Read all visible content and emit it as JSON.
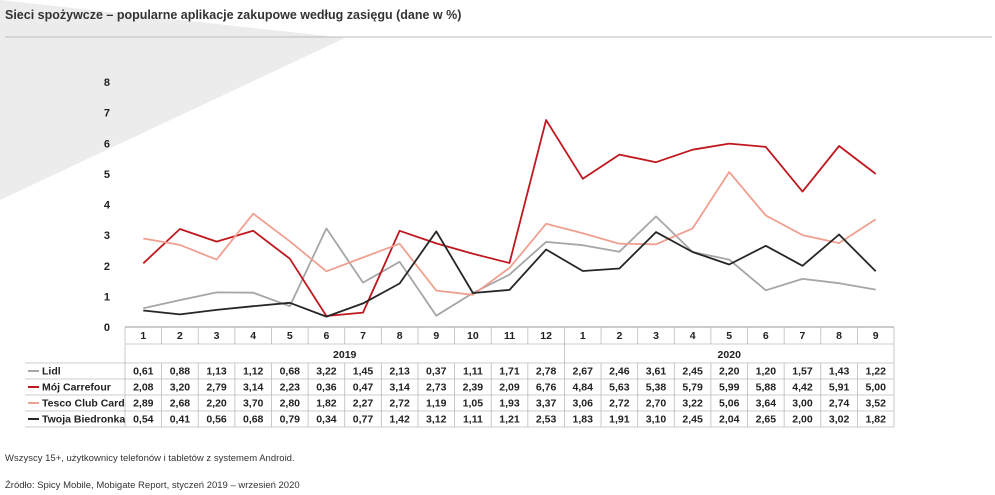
{
  "title": "Sieci spożywcze – popularne aplikacje zakupowe według zasięgu (dane w %)",
  "note": "Wszyscy 15+, użytkownicy telefonów i tabletów z systemem Android.",
  "source": "Źródło: Spicy Mobile, Mobigate Report, styczeń 2019 – wrzesień 2020",
  "colors": {
    "lidl": "#a6a6a6",
    "carrefour": "#c0181f",
    "tesco": "#f0a090",
    "biedronka": "#262626",
    "decor": "#ececec"
  },
  "chart_data": {
    "type": "line",
    "title": "Sieci spożywcze – popularne aplikacje zakupowe według zasięgu (dane w %)",
    "x": [
      "1",
      "2",
      "3",
      "4",
      "5",
      "6",
      "7",
      "8",
      "9",
      "10",
      "11",
      "12",
      "1",
      "2",
      "3",
      "4",
      "5",
      "6",
      "7",
      "8",
      "9"
    ],
    "year_groups": [
      {
        "label": "2019",
        "start": 0,
        "end": 11
      },
      {
        "label": "2020",
        "start": 12,
        "end": 20
      }
    ],
    "ylim": [
      0,
      8
    ],
    "yticks": [
      "0",
      "1",
      "2",
      "3",
      "4",
      "5",
      "6",
      "7",
      "8"
    ],
    "grid": false,
    "legend": "table-below",
    "series": [
      {
        "name": "Lidl",
        "color": "#a6a6a6",
        "labels": [
          "0,61",
          "0,88",
          "1,13",
          "1,12",
          "0,68",
          "3,22",
          "1,45",
          "2,13",
          "0,37",
          "1,11",
          "1,71",
          "2,78",
          "2,67",
          "2,46",
          "3,61",
          "2,45",
          "2,20",
          "1,20",
          "1,57",
          "1,43",
          "1,22"
        ],
        "values": [
          0.61,
          0.88,
          1.13,
          1.12,
          0.68,
          3.22,
          1.45,
          2.13,
          0.37,
          1.11,
          1.71,
          2.78,
          2.67,
          2.46,
          3.61,
          2.45,
          2.2,
          1.2,
          1.57,
          1.43,
          1.22
        ]
      },
      {
        "name": "Mój Carrefour",
        "color": "#c0181f",
        "labels": [
          "2,08",
          "3,20",
          "2,79",
          "3,14",
          "2,23",
          "0,36",
          "0,47",
          "3,14",
          "2,73",
          "2,39",
          "2,09",
          "6,76",
          "4,84",
          "5,63",
          "5,38",
          "5,79",
          "5,99",
          "5,88",
          "4,42",
          "5,91",
          "5,00"
        ],
        "values": [
          2.08,
          3.2,
          2.79,
          3.14,
          2.23,
          0.36,
          0.47,
          3.14,
          2.73,
          2.39,
          2.09,
          6.76,
          4.84,
          5.63,
          5.38,
          5.79,
          5.99,
          5.88,
          4.42,
          5.91,
          5.0
        ]
      },
      {
        "name": "Tesco Club Card",
        "color": "#f0a090",
        "labels": [
          "2,89",
          "2,68",
          "2,20",
          "3,70",
          "2,80",
          "1,82",
          "2,27",
          "2,72",
          "1,19",
          "1,05",
          "1,93",
          "3,37",
          "3,06",
          "2,72",
          "2,70",
          "3,22",
          "5,06",
          "3,64",
          "3,00",
          "2,74",
          "3,52"
        ],
        "values": [
          2.89,
          2.68,
          2.2,
          3.7,
          2.8,
          1.82,
          2.27,
          2.72,
          1.19,
          1.05,
          1.93,
          3.37,
          3.06,
          2.72,
          2.7,
          3.22,
          5.06,
          3.64,
          3.0,
          2.74,
          3.52
        ]
      },
      {
        "name": "Twoja Biedronka",
        "color": "#262626",
        "labels": [
          "0,54",
          "0,41",
          "0,56",
          "0,68",
          "0,79",
          "0,34",
          "0,77",
          "1,42",
          "3,12",
          "1,11",
          "1,21",
          "2,53",
          "1,83",
          "1,91",
          "3,10",
          "2,45",
          "2,04",
          "2,65",
          "2,00",
          "3,02",
          "1,82"
        ],
        "values": [
          0.54,
          0.41,
          0.56,
          0.68,
          0.79,
          0.34,
          0.77,
          1.42,
          3.12,
          1.11,
          1.21,
          2.53,
          1.83,
          1.91,
          3.1,
          2.45,
          2.04,
          2.65,
          2.0,
          3.02,
          1.82
        ]
      }
    ]
  }
}
